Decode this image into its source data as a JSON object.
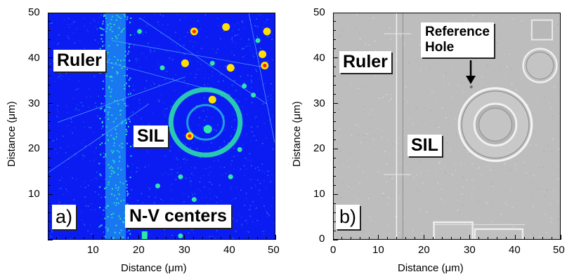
{
  "panel_a": {
    "label": "a)",
    "xlabel": "Distance (μm)",
    "ylabel": "Distance (μm)",
    "x_ticks": [
      "10",
      "20",
      "30",
      "40",
      "50"
    ],
    "y_ticks": [
      "10",
      "20",
      "30",
      "40",
      "50"
    ],
    "annotations": {
      "ruler": "Ruler",
      "sil": "SIL",
      "nv": "N-V centers"
    },
    "colors": {
      "background": "#0a1cf2",
      "hot": "#ff2200",
      "warm": "#ffe000",
      "mid": "#2ee6a8"
    }
  },
  "panel_b": {
    "label": "b)",
    "xlabel": "Distance (μm)",
    "ylabel": "Distance (μm)",
    "x_ticks": [
      "0",
      "10",
      "20",
      "30",
      "40",
      "50"
    ],
    "y_ticks": [
      "0",
      "10",
      "20",
      "30",
      "40",
      "50"
    ],
    "annotations": {
      "ruler": "Ruler",
      "sil": "SIL",
      "ref_line1": "Reference",
      "ref_line2": "Hole"
    },
    "colors": {
      "background": "#bdbdbd"
    }
  },
  "chart_data": [
    {
      "type": "heatmap",
      "title": "",
      "xlabel": "Distance (μm)",
      "ylabel": "Distance (μm)",
      "xlim": [
        0,
        50
      ],
      "ylim": [
        0,
        50
      ],
      "annotations": [
        "Ruler",
        "SIL",
        "N-V centers",
        "a)"
      ]
    },
    {
      "type": "heatmap",
      "title": "",
      "xlabel": "Distance (μm)",
      "ylabel": "Distance (μm)",
      "xlim": [
        0,
        50
      ],
      "ylim": [
        0,
        50
      ],
      "annotations": [
        "Ruler",
        "SIL",
        "Reference",
        "Hole",
        "b)"
      ]
    }
  ]
}
